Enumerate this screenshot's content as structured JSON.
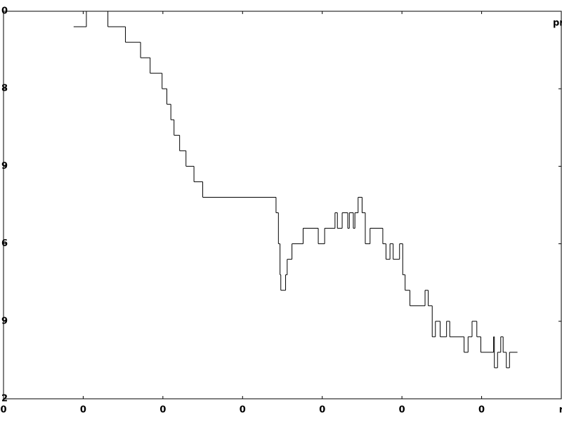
{
  "chart_data": {
    "type": "line",
    "step": "post",
    "series": [
      {
        "name": "pr",
        "color": "#000000",
        "x": [
          0.88,
          1.04,
          1.31,
          1.53,
          1.72,
          1.84,
          1.99,
          2.05,
          2.1,
          2.14,
          2.21,
          2.29,
          2.39,
          2.5,
          3.42,
          3.45,
          3.47,
          3.48,
          3.54,
          3.56,
          3.62,
          3.76,
          3.95,
          4.03,
          4.16,
          4.19,
          4.25,
          4.32,
          4.34,
          4.39,
          4.41,
          4.45,
          4.5,
          4.54,
          4.6,
          4.76,
          4.8,
          4.85,
          4.89,
          4.97,
          5.01,
          5.04,
          5.1,
          5.29,
          5.33,
          5.38,
          5.42,
          5.48,
          5.56,
          5.6,
          5.78,
          5.83,
          5.88,
          5.94,
          5.99,
          6.15,
          6.16,
          6.2,
          6.24,
          6.27,
          6.31,
          6.35,
          6.45
        ],
        "values": [
          4.8,
          5.0,
          4.8,
          4.6,
          4.4,
          4.2,
          4.0,
          3.8,
          3.6,
          3.4,
          3.2,
          3.0,
          2.8,
          2.6,
          2.4,
          2.0,
          1.6,
          1.4,
          1.6,
          1.8,
          2.0,
          2.2,
          2.0,
          2.2,
          2.4,
          2.2,
          2.4,
          2.2,
          2.4,
          2.2,
          2.4,
          2.6,
          2.4,
          2.0,
          2.2,
          2.0,
          1.8,
          2.0,
          1.8,
          2.0,
          1.6,
          1.4,
          1.2,
          1.4,
          1.2,
          0.8,
          1.0,
          0.8,
          1.0,
          0.8,
          0.6,
          0.8,
          1.0,
          0.8,
          0.6,
          0.8,
          0.4,
          0.6,
          0.8,
          0.6,
          0.4,
          0.6,
          0.6
        ]
      }
    ],
    "xlim": [
      0,
      7
    ],
    "xticks": [
      {
        "value": 0,
        "label": "0"
      },
      {
        "value": 1,
        "label": "0"
      },
      {
        "value": 2,
        "label": "0"
      },
      {
        "value": 3,
        "label": "0"
      },
      {
        "value": 4,
        "label": "0"
      },
      {
        "value": 5,
        "label": "0"
      },
      {
        "value": 6,
        "label": "0"
      },
      {
        "value": 7,
        "label": "r"
      }
    ],
    "ylim": [
      0,
      5
    ],
    "yticks": [
      {
        "value": 5,
        "label": "0"
      },
      {
        "value": 4,
        "label": "8"
      },
      {
        "value": 3,
        "label": "9"
      },
      {
        "value": 2,
        "label": "6"
      },
      {
        "value": 1,
        "label": "9"
      },
      {
        "value": 0,
        "label": "2"
      }
    ]
  }
}
